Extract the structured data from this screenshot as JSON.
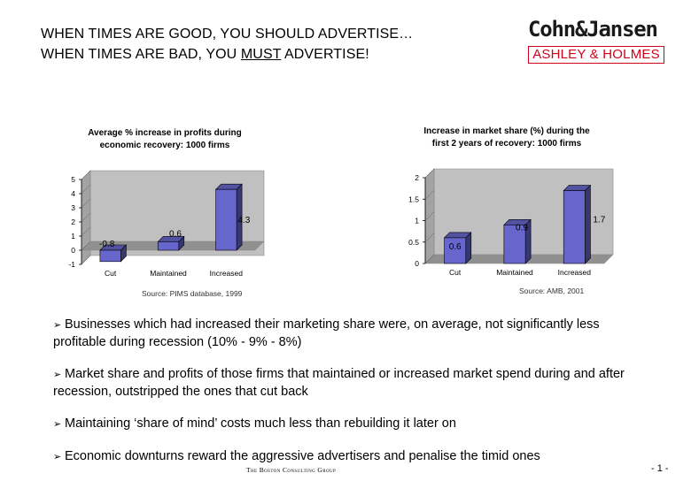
{
  "headline": {
    "line1": "WHEN TIMES ARE GOOD, YOU SHOULD ADVERTISE…",
    "line2_prefix": "WHEN TIMES ARE BAD, YOU ",
    "line2_emph": "MUST",
    "line2_suffix": " ADVERTISE!"
  },
  "logo": {
    "top": "Cohn&Jansen",
    "bottom": "ASHLEY & HOLMES",
    "colors": {
      "top": "#1a1a1a",
      "bottom": "#d0021b"
    }
  },
  "chart_data": [
    {
      "type": "bar",
      "title": "Average % increase in profits during economic recovery: 1000 firms",
      "title_lines": [
        "Average % increase in profits during",
        "economic recovery: 1000 firms"
      ],
      "categories": [
        "Cut",
        "Maintained",
        "Increased"
      ],
      "values": [
        -0.8,
        0.6,
        4.3
      ],
      "data_labels": [
        "-0.8",
        "0.6",
        "4.3"
      ],
      "ylim": [
        -1,
        5
      ],
      "yticks": [
        "-1",
        "0",
        "1",
        "2",
        "3",
        "4",
        "5"
      ],
      "xlabel": "",
      "ylabel": "",
      "source": "Source: PIMS database, 1999",
      "bar_color": "#6666cc",
      "background_color": "#c0c0c0"
    },
    {
      "type": "bar",
      "title": "Increase in market share (%) during the first 2 years of recovery: 1000 firms",
      "title_lines": [
        "Increase in market share (%) during the",
        "first 2 years of recovery: 1000 firms"
      ],
      "categories": [
        "Cut",
        "Maintained",
        "Increased"
      ],
      "values": [
        0.6,
        0.9,
        1.7
      ],
      "data_labels": [
        "0.6",
        "0.9",
        "1.7"
      ],
      "ylim": [
        0,
        2
      ],
      "yticks": [
        "0",
        "0.5",
        "1",
        "1.5",
        "2"
      ],
      "xlabel": "",
      "ylabel": "",
      "source": "Source: AMB, 2001",
      "bar_color": "#6666cc",
      "background_color": "#c0c0c0"
    }
  ],
  "bullets": [
    {
      "arrow": "➢",
      "text": "Businesses which had increased their marketing share were, on average, not significantly less profitable during recession (10% - 9% - 8%)"
    },
    {
      "arrow": "➢",
      "text": "Market share and profits of those firms that maintained or increased market spend during and after recession, outstripped the ones that cut back"
    },
    {
      "arrow": "➢",
      "text": "Maintaining ‘share of mind’ costs much less than rebuilding it later on"
    },
    {
      "arrow": "➢",
      "text": "Economic downturns reward the aggressive advertisers and penalise the timid ones"
    }
  ],
  "footer": {
    "company": "The Boston Consulting Group",
    "page": "- 1 -"
  }
}
